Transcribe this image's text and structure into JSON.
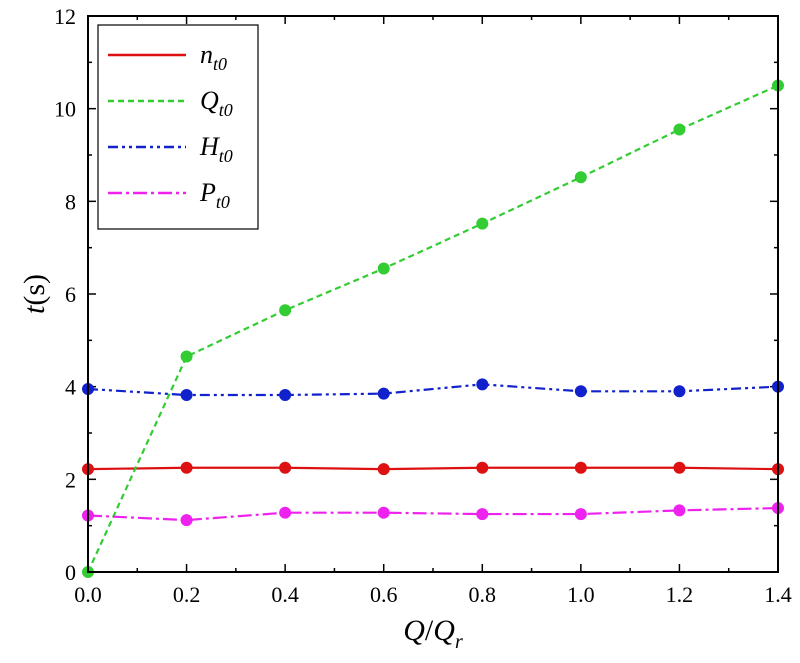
{
  "chart_data": {
    "type": "line",
    "title": "",
    "xlabel": {
      "main": "Q",
      "slash": "/",
      "den": "Q",
      "den_sub": "r"
    },
    "ylabel": {
      "main": "t",
      "unit": "(s)"
    },
    "xlim": [
      0.0,
      1.4
    ],
    "ylim": [
      0,
      12
    ],
    "x_ticks": [
      "0.0",
      "0.2",
      "0.4",
      "0.6",
      "0.8",
      "1.0",
      "1.2",
      "1.4"
    ],
    "y_ticks": [
      "0",
      "2",
      "4",
      "6",
      "8",
      "10",
      "12"
    ],
    "legend_position": "top-left",
    "grid": false,
    "series": [
      {
        "name": "n_t0",
        "label_main": "n",
        "label_sub": "t0",
        "color": "#dd1111",
        "dash": "solid",
        "x": [
          0.0,
          0.2,
          0.4,
          0.6,
          0.8,
          1.0,
          1.2,
          1.4
        ],
        "values": [
          2.22,
          2.25,
          2.25,
          2.22,
          2.25,
          2.25,
          2.25,
          2.22
        ]
      },
      {
        "name": "Q_t0",
        "label_main": "Q",
        "label_sub": "t0",
        "color": "#33cc33",
        "dash": "dash",
        "x": [
          0.0,
          0.2,
          0.4,
          0.6,
          0.8,
          1.0,
          1.2,
          1.4
        ],
        "values": [
          0.0,
          4.65,
          5.65,
          6.55,
          7.52,
          8.52,
          9.55,
          10.5
        ]
      },
      {
        "name": "H_t0",
        "label_main": "H",
        "label_sub": "t0",
        "color": "#1122cc",
        "dash": "dashdotdot",
        "x": [
          0.0,
          0.2,
          0.4,
          0.6,
          0.8,
          1.0,
          1.2,
          1.4
        ],
        "values": [
          3.95,
          3.82,
          3.82,
          3.85,
          4.05,
          3.9,
          3.9,
          4.0
        ]
      },
      {
        "name": "P_t0",
        "label_main": "P",
        "label_sub": "t0",
        "color": "#ee22ee",
        "dash": "dashdot",
        "x": [
          0.0,
          0.2,
          0.4,
          0.6,
          0.8,
          1.0,
          1.2,
          1.4
        ],
        "values": [
          1.22,
          1.12,
          1.28,
          1.28,
          1.25,
          1.25,
          1.33,
          1.38
        ]
      }
    ]
  }
}
